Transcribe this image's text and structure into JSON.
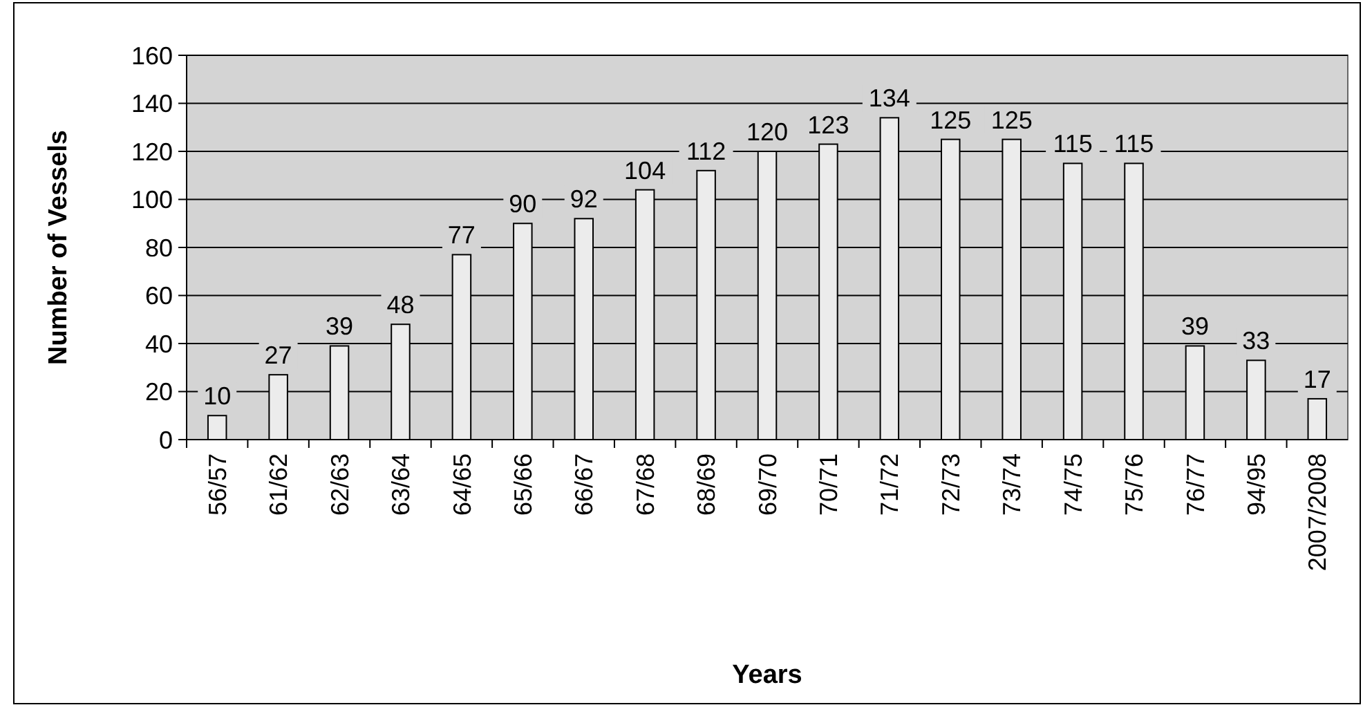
{
  "chart_data": {
    "type": "bar",
    "xlabel": "Years",
    "ylabel": "Number of Vessels",
    "categories": [
      "56/57",
      "61/62",
      "62/63",
      "63/64",
      "64/65",
      "65/66",
      "66/67",
      "67/68",
      "68/69",
      "69/70",
      "70/71",
      "71/72",
      "72/73",
      "73/74",
      "74/75",
      "75/76",
      "76/77",
      "94/95",
      "2007/2008"
    ],
    "values": [
      10,
      27,
      39,
      48,
      77,
      90,
      92,
      104,
      112,
      120,
      123,
      134,
      125,
      125,
      115,
      115,
      39,
      33,
      17
    ],
    "color": "#ececec",
    "ylim": [
      0,
      160
    ],
    "yticks": [
      0,
      20,
      40,
      60,
      80,
      100,
      120,
      140,
      160
    ],
    "grid": "y",
    "data_labels": true
  }
}
